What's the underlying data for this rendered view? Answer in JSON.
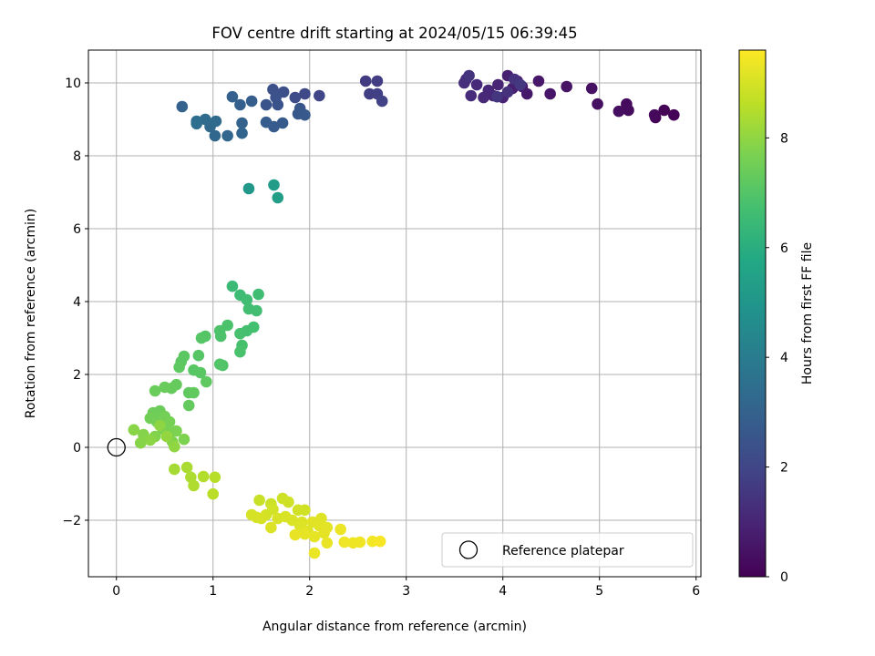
{
  "chart_data": {
    "type": "scatter",
    "title": "FOV centre drift starting at 2024/05/15 06:39:45",
    "xlabel": "Angular distance from reference (arcmin)",
    "ylabel": "Rotation from reference (arcmin)",
    "colorbar_label": "Hours from first FF file",
    "colormap": "viridis",
    "xlim": [
      -0.29,
      6.05
    ],
    "ylim": [
      -3.55,
      10.9
    ],
    "clim": [
      0,
      9.6
    ],
    "x_ticks": [
      0,
      1,
      2,
      3,
      4,
      5,
      6
    ],
    "y_ticks": [
      -2,
      0,
      2,
      4,
      6,
      8,
      10
    ],
    "colorbar_ticks": [
      0,
      2,
      4,
      6,
      8
    ],
    "grid": true,
    "legend": {
      "location": "lower-right",
      "entries": [
        "Reference platepar"
      ]
    },
    "reference_point": {
      "x": 0,
      "y": 0,
      "marker": "open-circle",
      "edge_color": "#000000"
    },
    "points": [
      {
        "x": 5.77,
        "y": 9.12,
        "h": 0.05
      },
      {
        "x": 5.67,
        "y": 9.25,
        "h": 0.1
      },
      {
        "x": 5.58,
        "y": 9.05,
        "h": 0.15
      },
      {
        "x": 5.57,
        "y": 9.12,
        "h": 0.2
      },
      {
        "x": 5.28,
        "y": 9.42,
        "h": 0.25
      },
      {
        "x": 5.3,
        "y": 9.25,
        "h": 0.3
      },
      {
        "x": 5.2,
        "y": 9.22,
        "h": 0.35
      },
      {
        "x": 4.98,
        "y": 9.42,
        "h": 0.4
      },
      {
        "x": 4.92,
        "y": 9.85,
        "h": 0.45
      },
      {
        "x": 4.66,
        "y": 9.9,
        "h": 0.5
      },
      {
        "x": 4.49,
        "y": 9.7,
        "h": 0.55
      },
      {
        "x": 4.37,
        "y": 10.05,
        "h": 0.6
      },
      {
        "x": 4.25,
        "y": 9.7,
        "h": 0.65
      },
      {
        "x": 4.2,
        "y": 9.9,
        "h": 0.7
      },
      {
        "x": 4.15,
        "y": 10.05,
        "h": 0.75
      },
      {
        "x": 4.1,
        "y": 9.85,
        "h": 0.8
      },
      {
        "x": 4.05,
        "y": 10.2,
        "h": 0.85
      },
      {
        "x": 4.0,
        "y": 9.6,
        "h": 0.9
      },
      {
        "x": 3.95,
        "y": 9.95,
        "h": 0.95
      },
      {
        "x": 3.9,
        "y": 9.65,
        "h": 1.0
      },
      {
        "x": 3.85,
        "y": 9.8,
        "h": 1.05
      },
      {
        "x": 3.8,
        "y": 9.6,
        "h": 1.1
      },
      {
        "x": 3.73,
        "y": 9.95,
        "h": 1.15
      },
      {
        "x": 3.67,
        "y": 9.65,
        "h": 1.2
      },
      {
        "x": 3.62,
        "y": 10.1,
        "h": 1.25
      },
      {
        "x": 3.6,
        "y": 10.0,
        "h": 1.3
      },
      {
        "x": 4.05,
        "y": 9.75,
        "h": 1.35
      },
      {
        "x": 4.12,
        "y": 10.1,
        "h": 1.4
      },
      {
        "x": 3.65,
        "y": 10.2,
        "h": 1.45
      },
      {
        "x": 3.94,
        "y": 9.62,
        "h": 1.5
      },
      {
        "x": 4.18,
        "y": 9.95,
        "h": 1.55
      },
      {
        "x": 2.58,
        "y": 10.05,
        "h": 1.65
      },
      {
        "x": 2.7,
        "y": 10.05,
        "h": 1.7
      },
      {
        "x": 2.62,
        "y": 9.7,
        "h": 1.75
      },
      {
        "x": 2.7,
        "y": 9.7,
        "h": 1.8
      },
      {
        "x": 2.75,
        "y": 9.5,
        "h": 1.85
      },
      {
        "x": 2.1,
        "y": 9.65,
        "h": 2.0
      },
      {
        "x": 1.95,
        "y": 9.7,
        "h": 2.1
      },
      {
        "x": 1.85,
        "y": 9.6,
        "h": 2.2
      },
      {
        "x": 1.73,
        "y": 9.75,
        "h": 2.3
      },
      {
        "x": 1.62,
        "y": 9.82,
        "h": 2.35
      },
      {
        "x": 1.65,
        "y": 9.6,
        "h": 2.4
      },
      {
        "x": 1.55,
        "y": 9.4,
        "h": 2.45
      },
      {
        "x": 1.67,
        "y": 9.4,
        "h": 2.5
      },
      {
        "x": 1.9,
        "y": 9.3,
        "h": 2.55
      },
      {
        "x": 1.88,
        "y": 9.15,
        "h": 2.6
      },
      {
        "x": 1.95,
        "y": 9.12,
        "h": 2.65
      },
      {
        "x": 1.72,
        "y": 8.9,
        "h": 2.7
      },
      {
        "x": 1.63,
        "y": 8.8,
        "h": 2.75
      },
      {
        "x": 1.55,
        "y": 8.92,
        "h": 2.8
      },
      {
        "x": 1.4,
        "y": 9.5,
        "h": 2.85
      },
      {
        "x": 1.28,
        "y": 9.4,
        "h": 2.9
      },
      {
        "x": 1.2,
        "y": 9.62,
        "h": 2.95
      },
      {
        "x": 0.68,
        "y": 9.35,
        "h": 3.0
      },
      {
        "x": 1.3,
        "y": 8.9,
        "h": 3.05
      },
      {
        "x": 1.3,
        "y": 8.62,
        "h": 3.1
      },
      {
        "x": 1.15,
        "y": 8.55,
        "h": 3.15
      },
      {
        "x": 1.02,
        "y": 8.55,
        "h": 3.2
      },
      {
        "x": 0.97,
        "y": 8.8,
        "h": 3.25
      },
      {
        "x": 1.03,
        "y": 8.95,
        "h": 3.3
      },
      {
        "x": 0.92,
        "y": 9.0,
        "h": 3.35
      },
      {
        "x": 0.83,
        "y": 8.95,
        "h": 3.4
      },
      {
        "x": 0.83,
        "y": 8.88,
        "h": 3.45
      },
      {
        "x": 1.37,
        "y": 7.1,
        "h": 5.1
      },
      {
        "x": 1.63,
        "y": 7.2,
        "h": 5.25
      },
      {
        "x": 1.67,
        "y": 6.85,
        "h": 5.35
      },
      {
        "x": 1.2,
        "y": 4.42,
        "h": 6.5
      },
      {
        "x": 1.28,
        "y": 4.18,
        "h": 6.55
      },
      {
        "x": 1.35,
        "y": 4.05,
        "h": 6.6
      },
      {
        "x": 1.47,
        "y": 4.2,
        "h": 6.62
      },
      {
        "x": 1.45,
        "y": 3.75,
        "h": 6.65
      },
      {
        "x": 1.37,
        "y": 3.8,
        "h": 6.68
      },
      {
        "x": 1.42,
        "y": 3.3,
        "h": 6.7
      },
      {
        "x": 1.35,
        "y": 3.2,
        "h": 6.72
      },
      {
        "x": 1.28,
        "y": 3.12,
        "h": 6.75
      },
      {
        "x": 1.3,
        "y": 2.8,
        "h": 6.78
      },
      {
        "x": 1.28,
        "y": 2.62,
        "h": 6.8
      },
      {
        "x": 1.15,
        "y": 3.35,
        "h": 6.85
      },
      {
        "x": 1.07,
        "y": 3.2,
        "h": 6.88
      },
      {
        "x": 1.08,
        "y": 3.05,
        "h": 6.9
      },
      {
        "x": 1.1,
        "y": 2.25,
        "h": 6.95
      },
      {
        "x": 1.07,
        "y": 2.28,
        "h": 6.98
      },
      {
        "x": 0.92,
        "y": 3.05,
        "h": 7.0
      },
      {
        "x": 0.88,
        "y": 3.0,
        "h": 7.02
      },
      {
        "x": 0.85,
        "y": 2.52,
        "h": 7.05
      },
      {
        "x": 0.8,
        "y": 2.12,
        "h": 7.08
      },
      {
        "x": 0.87,
        "y": 2.05,
        "h": 7.1
      },
      {
        "x": 0.7,
        "y": 2.5,
        "h": 7.12
      },
      {
        "x": 0.67,
        "y": 2.35,
        "h": 7.15
      },
      {
        "x": 0.65,
        "y": 2.2,
        "h": 7.18
      },
      {
        "x": 0.93,
        "y": 1.8,
        "h": 7.2
      },
      {
        "x": 0.75,
        "y": 1.5,
        "h": 7.22
      },
      {
        "x": 0.8,
        "y": 1.5,
        "h": 7.25
      },
      {
        "x": 0.75,
        "y": 1.15,
        "h": 7.28
      },
      {
        "x": 0.62,
        "y": 1.72,
        "h": 7.3
      },
      {
        "x": 0.57,
        "y": 1.62,
        "h": 7.33
      },
      {
        "x": 0.5,
        "y": 1.65,
        "h": 7.36
      },
      {
        "x": 0.4,
        "y": 1.55,
        "h": 7.4
      },
      {
        "x": 0.45,
        "y": 1.0,
        "h": 7.43
      },
      {
        "x": 0.38,
        "y": 0.95,
        "h": 7.46
      },
      {
        "x": 0.35,
        "y": 0.8,
        "h": 7.5
      },
      {
        "x": 0.42,
        "y": 0.7,
        "h": 7.53
      },
      {
        "x": 0.5,
        "y": 0.85,
        "h": 7.56
      },
      {
        "x": 0.55,
        "y": 0.7,
        "h": 7.6
      },
      {
        "x": 0.48,
        "y": 0.5,
        "h": 7.63
      },
      {
        "x": 0.55,
        "y": 0.4,
        "h": 7.66
      },
      {
        "x": 0.62,
        "y": 0.45,
        "h": 7.7
      },
      {
        "x": 0.7,
        "y": 0.22,
        "h": 7.73
      },
      {
        "x": 0.58,
        "y": 0.15,
        "h": 7.76
      },
      {
        "x": 0.4,
        "y": 0.3,
        "h": 7.8
      },
      {
        "x": 0.28,
        "y": 0.35,
        "h": 7.83
      },
      {
        "x": 0.25,
        "y": 0.12,
        "h": 7.86
      },
      {
        "x": 0.18,
        "y": 0.48,
        "h": 7.9
      },
      {
        "x": 0.35,
        "y": 0.2,
        "h": 7.93
      },
      {
        "x": 0.45,
        "y": 0.6,
        "h": 7.96
      },
      {
        "x": 0.6,
        "y": 0.02,
        "h": 8.0
      },
      {
        "x": 0.52,
        "y": 0.3,
        "h": 8.05
      },
      {
        "x": 0.6,
        "y": -0.6,
        "h": 8.3
      },
      {
        "x": 0.73,
        "y": -0.55,
        "h": 8.35
      },
      {
        "x": 0.77,
        "y": -0.82,
        "h": 8.4
      },
      {
        "x": 0.8,
        "y": -1.05,
        "h": 8.45
      },
      {
        "x": 0.9,
        "y": -0.8,
        "h": 8.5
      },
      {
        "x": 1.02,
        "y": -0.82,
        "h": 8.55
      },
      {
        "x": 1.0,
        "y": -1.28,
        "h": 8.6
      },
      {
        "x": 1.48,
        "y": -1.45,
        "h": 8.8
      },
      {
        "x": 1.6,
        "y": -1.55,
        "h": 8.85
      },
      {
        "x": 1.72,
        "y": -1.4,
        "h": 8.88
      },
      {
        "x": 1.78,
        "y": -1.5,
        "h": 8.9
      },
      {
        "x": 1.88,
        "y": -1.72,
        "h": 8.92
      },
      {
        "x": 1.95,
        "y": -1.72,
        "h": 8.94
      },
      {
        "x": 1.62,
        "y": -1.7,
        "h": 8.96
      },
      {
        "x": 1.55,
        "y": -1.85,
        "h": 8.98
      },
      {
        "x": 1.4,
        "y": -1.85,
        "h": 9.0
      },
      {
        "x": 1.45,
        "y": -1.92,
        "h": 9.02
      },
      {
        "x": 1.67,
        "y": -1.95,
        "h": 9.04
      },
      {
        "x": 1.75,
        "y": -1.9,
        "h": 9.06
      },
      {
        "x": 1.82,
        "y": -2.0,
        "h": 9.08
      },
      {
        "x": 1.6,
        "y": -2.2,
        "h": 9.1
      },
      {
        "x": 1.9,
        "y": -2.15,
        "h": 9.12
      },
      {
        "x": 1.98,
        "y": -2.3,
        "h": 9.14
      },
      {
        "x": 2.03,
        "y": -2.05,
        "h": 9.16
      },
      {
        "x": 2.1,
        "y": -2.15,
        "h": 9.18
      },
      {
        "x": 2.18,
        "y": -2.2,
        "h": 9.2
      },
      {
        "x": 2.15,
        "y": -2.35,
        "h": 9.22
      },
      {
        "x": 2.05,
        "y": -2.45,
        "h": 9.24
      },
      {
        "x": 1.95,
        "y": -2.38,
        "h": 9.26
      },
      {
        "x": 1.85,
        "y": -2.4,
        "h": 9.28
      },
      {
        "x": 2.18,
        "y": -2.62,
        "h": 9.3
      },
      {
        "x": 2.05,
        "y": -2.9,
        "h": 9.32
      },
      {
        "x": 2.32,
        "y": -2.25,
        "h": 9.34
      },
      {
        "x": 2.36,
        "y": -2.6,
        "h": 9.36
      },
      {
        "x": 2.45,
        "y": -2.62,
        "h": 9.38
      },
      {
        "x": 2.52,
        "y": -2.6,
        "h": 9.4
      },
      {
        "x": 2.65,
        "y": -2.58,
        "h": 9.45
      },
      {
        "x": 2.73,
        "y": -2.58,
        "h": 9.5
      },
      {
        "x": 2.12,
        "y": -1.95,
        "h": 9.15
      },
      {
        "x": 1.5,
        "y": -1.95,
        "h": 9.03
      },
      {
        "x": 1.92,
        "y": -2.05,
        "h": 9.11
      }
    ]
  }
}
